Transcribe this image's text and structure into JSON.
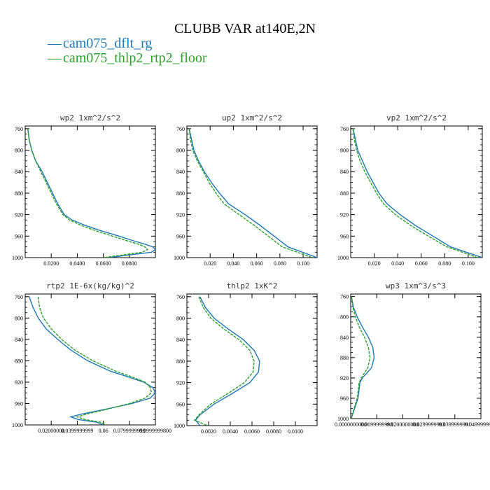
{
  "figure": {
    "title": "CLUBB VAR at140E,2N",
    "legend": [
      {
        "label": "cam075_dflt_rg",
        "color": "#1f77b4",
        "marker": "—"
      },
      {
        "label": "cam075_thlp2_rtp2_floor",
        "color": "#2ca02c",
        "marker": "—"
      }
    ],
    "series_colors": {
      "cam075_dflt_rg": "#1f77b4",
      "cam075_thlp2_rtp2_floor": "#2ca02c"
    }
  },
  "chart_data": [
    {
      "type": "line",
      "title": "wp2  1xm^2/s^2",
      "xlim": [
        0.0,
        0.1
      ],
      "ylim": [
        1000,
        755
      ],
      "y_inverted": true,
      "xticks": [
        0.02,
        0.04,
        0.06,
        0.08
      ],
      "xtick_labels": [
        "0.0200",
        "0.0400",
        "0.0600",
        "0.0800"
      ],
      "yticks": [
        760,
        800,
        840,
        880,
        920,
        960,
        1000
      ],
      "y": [
        760,
        780,
        800,
        820,
        840,
        860,
        880,
        900,
        920,
        930,
        940,
        950,
        960,
        970,
        975,
        980,
        985,
        990,
        995,
        1000
      ],
      "series": [
        {
          "name": "cam075_dflt_rg",
          "x": [
            0.002,
            0.003,
            0.005,
            0.008,
            0.013,
            0.017,
            0.021,
            0.025,
            0.03,
            0.036,
            0.046,
            0.058,
            0.072,
            0.085,
            0.092,
            0.098,
            0.1,
            0.097,
            0.08,
            0.064
          ]
        },
        {
          "name": "cam075_thlp2_rtp2_floor",
          "x": [
            0.002,
            0.003,
            0.005,
            0.008,
            0.012,
            0.016,
            0.02,
            0.024,
            0.029,
            0.034,
            0.043,
            0.054,
            0.067,
            0.08,
            0.087,
            0.092,
            0.094,
            0.09,
            0.075,
            0.06
          ]
        }
      ]
    },
    {
      "type": "line",
      "title": "up2  1xm^2/s^2",
      "xlim": [
        0.0,
        0.112
      ],
      "ylim": [
        1000,
        755
      ],
      "y_inverted": true,
      "xticks": [
        0.02,
        0.04,
        0.06,
        0.08,
        0.1
      ],
      "xtick_labels": [
        "0.020",
        "0.040",
        "0.060",
        "0.080",
        "0.100"
      ],
      "yticks": [
        760,
        800,
        840,
        880,
        920,
        960,
        1000
      ],
      "y": [
        760,
        780,
        800,
        820,
        840,
        860,
        880,
        900,
        920,
        940,
        960,
        980,
        1000
      ],
      "series": [
        {
          "name": "cam075_dflt_rg",
          "x": [
            0.002,
            0.004,
            0.006,
            0.01,
            0.015,
            0.021,
            0.028,
            0.036,
            0.05,
            0.063,
            0.075,
            0.087,
            0.112
          ]
        },
        {
          "name": "cam075_thlp2_rtp2_floor",
          "x": [
            0.002,
            0.003,
            0.005,
            0.009,
            0.014,
            0.019,
            0.025,
            0.032,
            0.045,
            0.058,
            0.07,
            0.082,
            0.108
          ]
        }
      ]
    },
    {
      "type": "line",
      "title": "vp2  1xm^2/s^2",
      "xlim": [
        0.0,
        0.112
      ],
      "ylim": [
        1000,
        755
      ],
      "y_inverted": true,
      "xticks": [
        0.02,
        0.04,
        0.06,
        0.08,
        0.1
      ],
      "xtick_labels": [
        "0.020",
        "0.040",
        "0.060",
        "0.080",
        "0.100"
      ],
      "yticks": [
        760,
        800,
        840,
        880,
        920,
        960,
        1000
      ],
      "y": [
        760,
        780,
        800,
        820,
        840,
        860,
        880,
        900,
        920,
        940,
        960,
        980,
        1000
      ],
      "series": [
        {
          "name": "cam075_dflt_rg",
          "x": [
            0.002,
            0.004,
            0.006,
            0.01,
            0.014,
            0.019,
            0.024,
            0.031,
            0.042,
            0.055,
            0.07,
            0.085,
            0.112
          ]
        },
        {
          "name": "cam075_thlp2_rtp2_floor",
          "x": [
            0.002,
            0.003,
            0.005,
            0.008,
            0.012,
            0.017,
            0.022,
            0.028,
            0.038,
            0.051,
            0.066,
            0.082,
            0.108
          ]
        }
      ]
    },
    {
      "type": "line",
      "title": "rtp2  1E-6x(kg/kg)^2",
      "xlim": [
        0.0,
        0.1
      ],
      "ylim": [
        1000,
        755
      ],
      "y_inverted": true,
      "xticks": [
        0.02,
        0.04,
        0.06,
        0.08,
        0.1
      ],
      "xtick_labels": [
        "0.02000000",
        "0.0399999999",
        "0.06",
        "0.0799999999",
        "0.0999999800"
      ],
      "yticks": [
        760,
        800,
        840,
        880,
        920,
        960,
        1000
      ],
      "y": [
        760,
        780,
        800,
        820,
        840,
        860,
        880,
        900,
        910,
        920,
        930,
        940,
        950,
        960,
        970,
        980,
        985,
        990,
        995,
        1000
      ],
      "series": [
        {
          "name": "cam075_dflt_rg",
          "x": [
            0.003,
            0.006,
            0.01,
            0.016,
            0.025,
            0.035,
            0.048,
            0.066,
            0.079,
            0.091,
            0.098,
            0.1,
            0.096,
            0.082,
            0.063,
            0.043,
            0.035,
            0.041,
            0.055,
            0.06
          ]
        },
        {
          "name": "cam075_thlp2_rtp2_floor",
          "x": [
            0.01,
            0.011,
            0.014,
            0.02,
            0.028,
            0.038,
            0.052,
            0.07,
            0.082,
            0.092,
            0.096,
            0.097,
            0.092,
            0.08,
            0.064,
            0.047,
            0.04,
            0.046,
            0.058,
            0.062
          ]
        }
      ]
    },
    {
      "type": "line",
      "title": "thlp2  1xK^2",
      "xlim": [
        0.0,
        0.012
      ],
      "ylim": [
        1000,
        755
      ],
      "y_inverted": true,
      "xticks": [
        0.002,
        0.004,
        0.006,
        0.008,
        0.01
      ],
      "xtick_labels": [
        "0.0020",
        "0.0040",
        "0.0060",
        "0.0080",
        "0.0100"
      ],
      "yticks": [
        760,
        800,
        840,
        880,
        920,
        960,
        1000
      ],
      "y": [
        760,
        780,
        800,
        820,
        840,
        860,
        880,
        900,
        920,
        940,
        960,
        980,
        990,
        1000
      ],
      "series": [
        {
          "name": "cam075_dflt_rg",
          "x": [
            0.0012,
            0.0017,
            0.0025,
            0.0038,
            0.0052,
            0.0062,
            0.0067,
            0.0066,
            0.0058,
            0.0042,
            0.0025,
            0.0012,
            0.0008,
            0.0012
          ]
        },
        {
          "name": "cam075_thlp2_rtp2_floor",
          "x": [
            0.0011,
            0.0015,
            0.0022,
            0.0034,
            0.0048,
            0.0058,
            0.0062,
            0.0061,
            0.0053,
            0.0038,
            0.0022,
            0.0011,
            0.0007,
            0.0019
          ]
        }
      ]
    },
    {
      "type": "line",
      "title": "wp3  1xm^3/s^3",
      "xlim": [
        0.0,
        0.05
      ],
      "ylim": [
        1000,
        755
      ],
      "y_inverted": true,
      "xticks": [
        0.0,
        0.01,
        0.02,
        0.03,
        0.04,
        0.05
      ],
      "xtick_labels": [
        "0.0000000000",
        "0.0099999998",
        "0.0200000000",
        "0.0299999993",
        "0.0399999991",
        "0.0499999997"
      ],
      "yticks": [
        760,
        800,
        840,
        880,
        920,
        960,
        1000
      ],
      "y": [
        760,
        780,
        800,
        820,
        840,
        860,
        880,
        900,
        920,
        930,
        940,
        960,
        980,
        1000
      ],
      "series": [
        {
          "name": "cam075_dflt_rg",
          "x": [
            0.0003,
            0.001,
            0.0025,
            0.0045,
            0.0068,
            0.0085,
            0.009,
            0.008,
            0.0045,
            0.0035,
            0.0033,
            0.0028,
            0.0015,
            0.0002
          ]
        },
        {
          "name": "cam075_thlp2_rtp2_floor",
          "x": [
            0.0003,
            0.0008,
            0.0018,
            0.0033,
            0.0053,
            0.0068,
            0.0074,
            0.0066,
            0.004,
            0.0032,
            0.003,
            0.0025,
            0.0013,
            0.0002
          ]
        }
      ]
    }
  ]
}
